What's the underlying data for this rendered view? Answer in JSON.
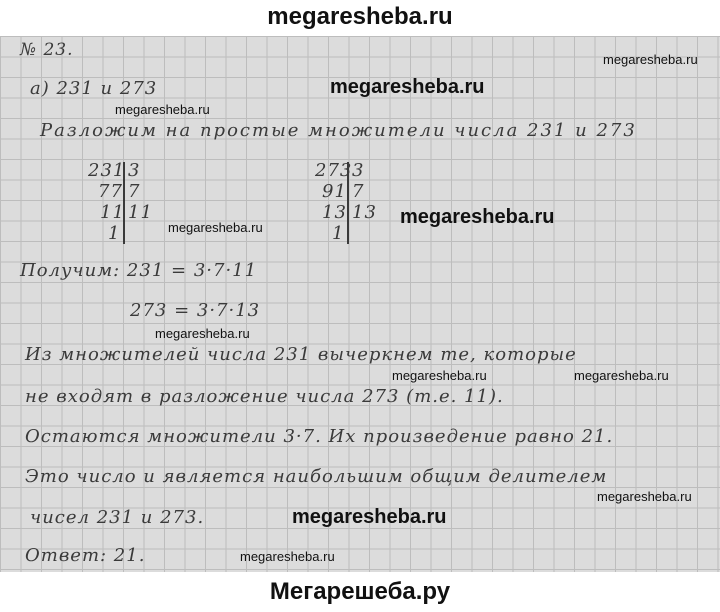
{
  "header": {
    "site": "megaresheba.ru"
  },
  "footer": {
    "site": "Мегарешеба.ру"
  },
  "solution": {
    "number": "№ 23.",
    "part": "а) 231 и 273",
    "intro": "Разложим на простые множители числа 231 и 273",
    "left_column": {
      "dividends": [
        "231",
        "77",
        "11",
        "1"
      ],
      "divisors": [
        "3",
        "7",
        "11"
      ]
    },
    "right_column": {
      "dividends": [
        "273",
        "91",
        "13",
        "1"
      ],
      "divisors": [
        "3",
        "7",
        "13"
      ]
    },
    "result_1": "Получим: 231 = 3·7·11",
    "result_2": "273 = 3·7·13",
    "line_1": "Из множителей числа 231 вычеркнем те, которые",
    "line_2": "не входят в разложение числа 273 (т.е. 11).",
    "line_3": "Остаются множители 3·7. Их произведение равно 21.",
    "line_4": "Это число и является наибольшим общим делителем",
    "line_5": "чисел 231 и 273.",
    "answer": "Ответ: 21."
  },
  "watermarks": [
    "megaresheba.ru",
    "megaresheba.ru",
    "megaresheba.ru",
    "megaresheba.ru",
    "megaresheba.ru",
    "megaresheba.ru",
    "megaresheba.ru",
    "megaresheba.ru",
    "megaresheba.ru",
    "megaresheba.ru",
    "megaresheba.ru"
  ]
}
